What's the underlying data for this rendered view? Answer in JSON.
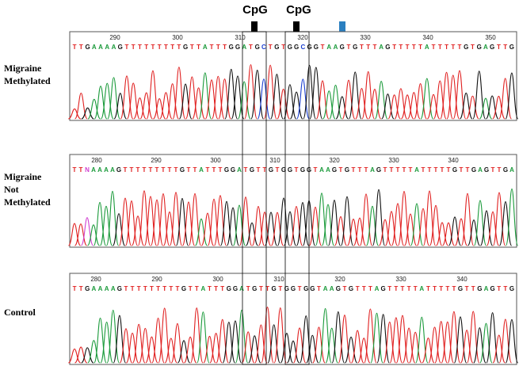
{
  "cpg_labels": [
    "CpG",
    "CpG"
  ],
  "panels": [
    {
      "label_lines": [
        "Migraine",
        "Methylated"
      ],
      "sequence": "TTGAAAAGTTTTTTTTTGTTATTTGGATGCTGTGGCGGTAAGTGTTTAGTTTTTATTTTTGTGAGTTG",
      "positions": [
        290,
        300,
        310,
        320,
        330,
        340,
        350
      ]
    },
    {
      "label_lines": [
        "Migraine",
        "Not",
        "Methylated"
      ],
      "sequence": "TTNAAAAGTTTTTTTTTGTTATTTGGATGTTGTGGTGGTAAGTGTTTAGTTTTTATTTTTGTTGAGTTGA",
      "positions": [
        280,
        290,
        300,
        310,
        320,
        330,
        340
      ]
    },
    {
      "label_lines": [
        "Control"
      ],
      "sequence": "TTGAAAAGTTTTTTTTTGTTATTTGGATGTTGTGGTGGTAAGTGTTTAGTTTTTATTTTTGTTGAGTTG",
      "positions": [
        280,
        290,
        300,
        310,
        320,
        330,
        340
      ]
    }
  ]
}
